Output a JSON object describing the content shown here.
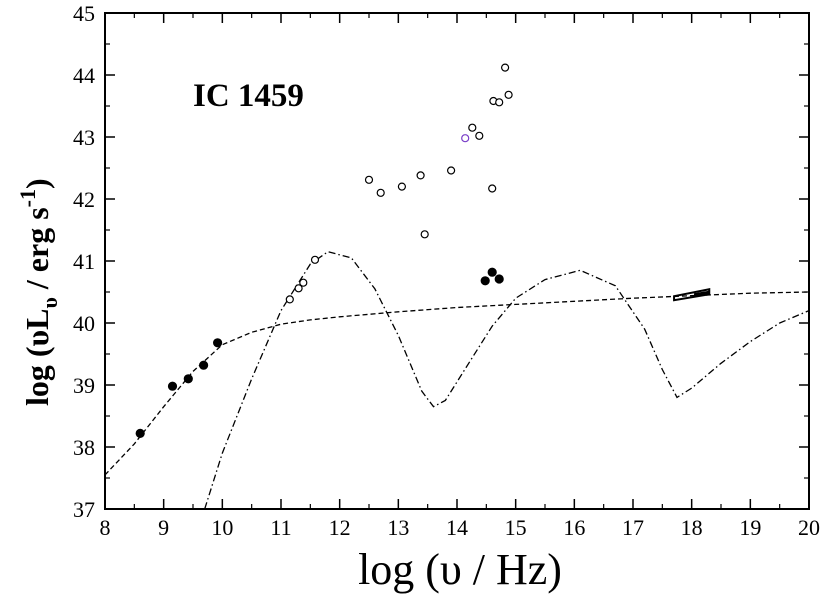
{
  "chart_data": {
    "type": "scatter",
    "title": "IC 1459",
    "xlabel": "log (υ  / Hz)",
    "ylabel_main": "log (υL",
    "ylabel_sub": "υ",
    "ylabel_tail": " / erg s",
    "ylabel_sup": "-1",
    "ylabel_close": ")",
    "xlim": [
      8,
      20
    ],
    "ylim": [
      37,
      45
    ],
    "x_ticks": [
      "8",
      "9",
      "10",
      "11",
      "12",
      "13",
      "14",
      "15",
      "16",
      "17",
      "18",
      "19",
      "20"
    ],
    "y_ticks": [
      "37",
      "38",
      "39",
      "40",
      "41",
      "42",
      "43",
      "44",
      "45"
    ],
    "series": [
      {
        "name": "filled points",
        "marker": "filled-circle",
        "color": "#000000",
        "x": [
          8.6,
          9.15,
          9.42,
          9.68,
          9.92,
          14.48,
          14.6,
          14.72
        ],
        "y": [
          38.22,
          38.98,
          39.1,
          39.32,
          39.68,
          40.68,
          40.82,
          40.71
        ]
      },
      {
        "name": "open points",
        "marker": "open-circle",
        "color": "#000000",
        "x": [
          11.15,
          11.3,
          11.38,
          11.58,
          12.5,
          12.7,
          13.06,
          13.38,
          13.45,
          13.9,
          14.26,
          14.38,
          14.6,
          14.62,
          14.72,
          14.82,
          14.88
        ],
        "y": [
          40.38,
          40.56,
          40.65,
          41.02,
          42.31,
          42.1,
          42.2,
          42.38,
          41.43,
          42.46,
          43.15,
          43.02,
          42.17,
          43.58,
          43.56,
          44.12,
          43.68
        ]
      },
      {
        "name": "open point (highlighted)",
        "marker": "open-circle",
        "color": "#7a3fc8",
        "x": [
          14.14
        ],
        "y": [
          42.98
        ]
      },
      {
        "name": "dashed model",
        "style": "dashed",
        "color": "#000000",
        "x": [
          8.0,
          8.5,
          9.0,
          9.5,
          10.0,
          10.5,
          11.0,
          11.5,
          12.0,
          13.0,
          14.0,
          15.0,
          16.0,
          17.0,
          18.0,
          19.0,
          20.0
        ],
        "y": [
          37.55,
          38.05,
          38.65,
          39.22,
          39.65,
          39.85,
          39.98,
          40.05,
          40.1,
          40.18,
          40.25,
          40.3,
          40.35,
          40.4,
          40.44,
          40.48,
          40.5
        ]
      },
      {
        "name": "dash-dot model",
        "style": "dashdot",
        "color": "#000000",
        "x": [
          9.7,
          10.0,
          10.5,
          11.0,
          11.5,
          11.8,
          12.2,
          12.6,
          13.0,
          13.4,
          13.6,
          13.8,
          14.2,
          14.6,
          15.0,
          15.5,
          16.1,
          16.7,
          17.2,
          17.5,
          17.75,
          18.0,
          18.5,
          19.0,
          19.5,
          20.0
        ],
        "y": [
          37.0,
          37.9,
          39.1,
          40.2,
          40.95,
          41.15,
          41.05,
          40.55,
          39.8,
          38.9,
          38.65,
          38.75,
          39.35,
          39.95,
          40.4,
          40.7,
          40.85,
          40.6,
          39.9,
          39.25,
          38.8,
          38.95,
          39.35,
          39.7,
          40.0,
          40.2
        ]
      },
      {
        "name": "X-ray band",
        "style": "bowtie",
        "color": "#000000",
        "x": [
          17.7,
          18.3
        ],
        "y": [
          40.4,
          40.48
        ]
      }
    ],
    "grid": false,
    "legend": "none"
  }
}
